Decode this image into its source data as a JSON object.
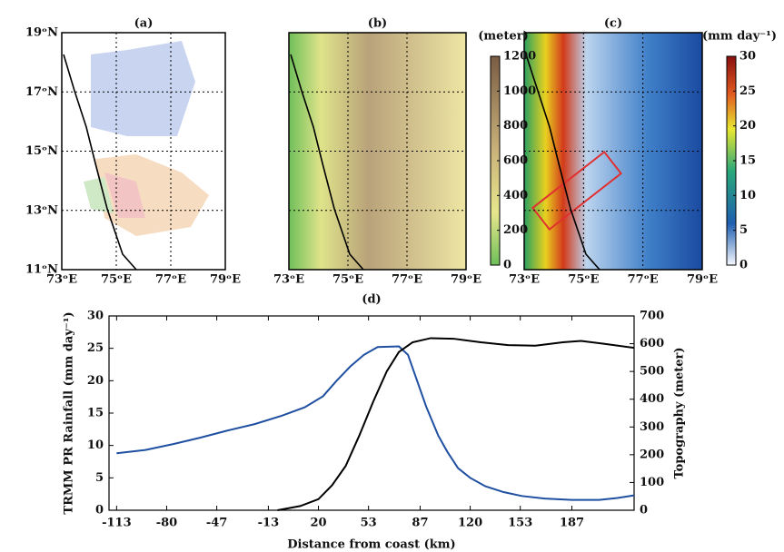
{
  "maps": {
    "panels": [
      {
        "label": "(a)"
      },
      {
        "label": "(b)",
        "colorbar": {
          "unit": "(meter)",
          "lim": [
            0,
            1200
          ],
          "ticks": [
            0,
            200,
            400,
            600,
            800,
            1000,
            1200
          ]
        }
      },
      {
        "label": "(c)",
        "colorbar": {
          "unit": "(mm day⁻¹)",
          "lim": [
            0,
            30
          ],
          "ticks": [
            0,
            5,
            10,
            15,
            20,
            25,
            30
          ]
        }
      }
    ],
    "lon_labels": [
      "73ᵒE",
      "75ᵒE",
      "77ᵒE",
      "79ᵒE"
    ],
    "lat_labels": [
      "11ᵒN",
      "13ᵒN",
      "15ᵒN",
      "17ᵒN",
      "19ᵒN"
    ]
  },
  "chart_data": {
    "type": "line",
    "title": "(d)",
    "xlabel": "Distance from coast (km)",
    "ylabel": "TRMM PR Rainfall (mm day⁻¹)",
    "y2label": "Topography (meter)",
    "xlim": [
      -118,
      228
    ],
    "xticks": [
      -113,
      -80,
      -47,
      -13,
      20,
      53,
      87,
      120,
      153,
      187
    ],
    "ylim": [
      0,
      30
    ],
    "yticks": [
      0,
      5,
      10,
      15,
      20,
      25,
      30
    ],
    "y2lim": [
      0,
      700
    ],
    "y2ticks": [
      0,
      100,
      200,
      300,
      400,
      500,
      600,
      700
    ],
    "series": [
      {
        "color": "#1f4fa0",
        "axis": "y",
        "x": [
          -113,
          -94,
          -76,
          -58,
          -40,
          -22,
          -4,
          11,
          23,
          32,
          41,
          50,
          59,
          73,
          79,
          85,
          91,
          99,
          105,
          112,
          120,
          130,
          142,
          154,
          169,
          187,
          205,
          217,
          228
        ],
        "values": [
          8.8,
          9.3,
          10.2,
          11.2,
          12.3,
          13.3,
          14.6,
          15.9,
          17.6,
          20,
          22.2,
          24,
          25.2,
          25.3,
          24,
          20,
          16,
          11.5,
          9,
          6.5,
          5,
          3.7,
          2.8,
          2.2,
          1.8,
          1.6,
          1.6,
          1.9,
          2.3
        ]
      },
      {
        "color": "#000000",
        "axis": "y2",
        "x": [
          -7,
          8,
          20,
          29,
          38,
          47,
          56,
          65,
          73,
          82,
          94,
          109,
          127,
          145,
          163,
          181,
          193,
          208,
          228
        ],
        "values": [
          0,
          15,
          40,
          90,
          160,
          270,
          390,
          500,
          570,
          605,
          620,
          618,
          605,
          595,
          593,
          605,
          610,
          600,
          585
        ]
      }
    ]
  }
}
